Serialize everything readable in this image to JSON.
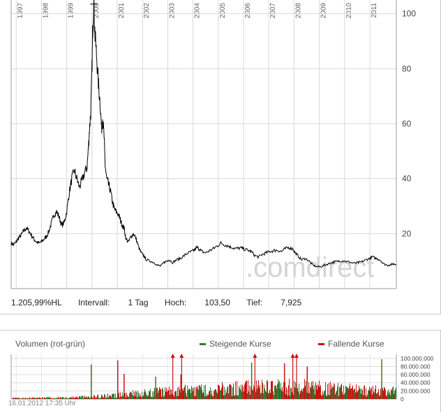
{
  "chart_data": [
    {
      "type": "line",
      "title": "",
      "x_ticks": [
        "1997",
        "1998",
        "1999",
        "2000",
        "2001",
        "2002",
        "2003",
        "2004",
        "2005",
        "2006",
        "2007",
        "2008",
        "2009",
        "2010",
        "2011"
      ],
      "y_ticks": [
        20,
        40,
        60,
        80,
        100
      ],
      "ylim": [
        0,
        105
      ],
      "xlim": [
        1996.8,
        2012.05
      ],
      "grid": true,
      "series": [
        {
          "color": "#000000",
          "points": [
            [
              1996.8,
              16.5
            ],
            [
              1996.9,
              16
            ],
            [
              1997.0,
              17
            ],
            [
              1997.1,
              18.5
            ],
            [
              1997.2,
              19.5
            ],
            [
              1997.3,
              21
            ],
            [
              1997.4,
              22
            ],
            [
              1997.5,
              21
            ],
            [
              1997.6,
              19.5
            ],
            [
              1997.7,
              18
            ],
            [
              1997.8,
              17
            ],
            [
              1997.9,
              16.5
            ],
            [
              1998.0,
              17
            ],
            [
              1998.1,
              18
            ],
            [
              1998.2,
              19
            ],
            [
              1998.3,
              21
            ],
            [
              1998.4,
              24
            ],
            [
              1998.5,
              27
            ],
            [
              1998.6,
              28
            ],
            [
              1998.7,
              26
            ],
            [
              1998.8,
              23
            ],
            [
              1998.9,
              24
            ],
            [
              1999.0,
              28
            ],
            [
              1999.1,
              35
            ],
            [
              1999.2,
              40
            ],
            [
              1999.3,
              43
            ],
            [
              1999.4,
              40
            ],
            [
              1999.5,
              37
            ],
            [
              1999.6,
              39
            ],
            [
              1999.7,
              42
            ],
            [
              1999.8,
              44
            ],
            [
              1999.85,
              50
            ],
            [
              1999.9,
              58
            ],
            [
              1999.95,
              64
            ],
            [
              2000.0,
              80
            ],
            [
              2000.03,
              95
            ],
            [
              2000.07,
              103.5
            ],
            [
              2000.12,
              92
            ],
            [
              2000.18,
              85
            ],
            [
              2000.25,
              75
            ],
            [
              2000.32,
              68
            ],
            [
              2000.38,
              58
            ],
            [
              2000.42,
              62
            ],
            [
              2000.48,
              55
            ],
            [
              2000.52,
              45
            ],
            [
              2000.58,
              40
            ],
            [
              2000.65,
              38
            ],
            [
              2000.72,
              36
            ],
            [
              2000.8,
              32
            ],
            [
              2000.88,
              29
            ],
            [
              2000.95,
              28
            ],
            [
              2001.05,
              27
            ],
            [
              2001.12,
              25
            ],
            [
              2001.2,
              23
            ],
            [
              2001.27,
              22
            ],
            [
              2001.35,
              18
            ],
            [
              2001.45,
              17
            ],
            [
              2001.55,
              19
            ],
            [
              2001.65,
              20
            ],
            [
              2001.75,
              18
            ],
            [
              2001.85,
              15
            ],
            [
              2001.95,
              13
            ],
            [
              2002.05,
              12
            ],
            [
              2002.15,
              10.5
            ],
            [
              2002.3,
              10
            ],
            [
              2002.45,
              9.5
            ],
            [
              2002.6,
              8.5
            ],
            [
              2002.72,
              8.2
            ],
            [
              2002.85,
              9.5
            ],
            [
              2002.95,
              10
            ],
            [
              2003.05,
              10.5
            ],
            [
              2003.2,
              9.5
            ],
            [
              2003.35,
              10.5
            ],
            [
              2003.5,
              11
            ],
            [
              2003.65,
              12
            ],
            [
              2003.8,
              13
            ],
            [
              2003.95,
              13.5
            ],
            [
              2004.05,
              14
            ],
            [
              2004.15,
              15
            ],
            [
              2004.25,
              14.5
            ],
            [
              2004.35,
              13.5
            ],
            [
              2004.5,
              13
            ],
            [
              2004.65,
              13.8
            ],
            [
              2004.8,
              14.5
            ],
            [
              2004.95,
              15.5
            ],
            [
              2005.1,
              16.5
            ],
            [
              2005.25,
              16
            ],
            [
              2005.4,
              15.5
            ],
            [
              2005.55,
              15
            ],
            [
              2005.7,
              14.5
            ],
            [
              2005.85,
              14.8
            ],
            [
              2006.0,
              14.5
            ],
            [
              2006.15,
              14
            ],
            [
              2006.3,
              13.5
            ],
            [
              2006.45,
              12
            ],
            [
              2006.6,
              11.5
            ],
            [
              2006.75,
              12.5
            ],
            [
              2006.9,
              13
            ],
            [
              2007.05,
              13.5
            ],
            [
              2007.2,
              13.8
            ],
            [
              2007.35,
              14
            ],
            [
              2007.5,
              13.5
            ],
            [
              2007.65,
              14.5
            ],
            [
              2007.8,
              15
            ],
            [
              2007.95,
              14.5
            ],
            [
              2008.05,
              13
            ],
            [
              2008.15,
              12
            ],
            [
              2008.3,
              10.5
            ],
            [
              2008.45,
              11
            ],
            [
              2008.6,
              10
            ],
            [
              2008.75,
              8.5
            ],
            [
              2008.9,
              8
            ],
            [
              2009.05,
              7.925
            ],
            [
              2009.2,
              8.5
            ],
            [
              2009.35,
              9
            ],
            [
              2009.5,
              9.5
            ],
            [
              2009.65,
              9.8
            ],
            [
              2009.8,
              10
            ],
            [
              2009.95,
              10.2
            ],
            [
              2010.1,
              9.8
            ],
            [
              2010.25,
              9.5
            ],
            [
              2010.4,
              9.2
            ],
            [
              2010.55,
              9.5
            ],
            [
              2010.7,
              9.8
            ],
            [
              2010.85,
              10.5
            ],
            [
              2011.0,
              11
            ],
            [
              2011.1,
              11.5
            ],
            [
              2011.25,
              11
            ],
            [
              2011.4,
              10.5
            ],
            [
              2011.55,
              9
            ],
            [
              2011.7,
              8.5
            ],
            [
              2011.85,
              8.8
            ],
            [
              2011.95,
              9
            ],
            [
              2012.04,
              8.8
            ]
          ]
        }
      ]
    },
    {
      "type": "bar",
      "title": "Volumen (rot-grün)",
      "y_ticks": [
        0,
        20000000,
        40000000,
        60000000,
        80000000,
        100000000
      ],
      "y_tick_labels": [
        "0",
        "20.000.000",
        "40.000.000",
        "60.000.000",
        "80.000.000",
        "100.000.000"
      ],
      "ylim": [
        0,
        110000000
      ],
      "xlim": [
        1996.8,
        2012.05
      ],
      "grid": true,
      "legend": [
        "Steigende Kurse",
        "Fallende Kurse"
      ],
      "legend_placement": "top-right",
      "series_colors": {
        "up": "#2e7d32",
        "down": "#cc1111"
      },
      "volume_profile": [
        [
          1996.8,
          2000000
        ],
        [
          1998.0,
          3000000
        ],
        [
          1999.0,
          4000000
        ],
        [
          2000.0,
          6000000
        ],
        [
          2001.0,
          10000000
        ],
        [
          2002.0,
          16000000
        ],
        [
          2003.0,
          20000000
        ],
        [
          2004.0,
          22000000
        ],
        [
          2005.0,
          25000000
        ],
        [
          2006.0,
          28000000
        ],
        [
          2007.0,
          30000000
        ],
        [
          2008.0,
          32000000
        ],
        [
          2009.0,
          28000000
        ],
        [
          2010.0,
          24000000
        ],
        [
          2011.0,
          22000000
        ],
        [
          2012.05,
          20000000
        ]
      ],
      "spikes": [
        {
          "x": 1999.95,
          "value": 85000000,
          "dir": "up"
        },
        {
          "x": 2001.0,
          "value": 95000000,
          "dir": "down"
        },
        {
          "x": 2001.25,
          "value": 62000000,
          "dir": "down"
        },
        {
          "x": 2002.5,
          "value": 55000000,
          "dir": "up"
        },
        {
          "x": 2003.5,
          "value": 60000000,
          "dir": "down"
        },
        {
          "x": 2006.3,
          "value": 90000000,
          "dir": "up"
        },
        {
          "x": 2007.6,
          "value": 88000000,
          "dir": "down"
        },
        {
          "x": 2008.5,
          "value": 80000000,
          "dir": "down"
        },
        {
          "x": 2011.45,
          "value": 98000000,
          "dir": "up"
        }
      ],
      "overflow_markers": [
        2003.2,
        2003.55,
        2006.45,
        2007.95,
        2008.1
      ]
    }
  ],
  "stats": {
    "hl": "1.205,99%HL",
    "interval_label": "Intervall:",
    "interval_value": "1 Tag",
    "high_label": "Hoch:",
    "high_value": "103,50",
    "low_label": "Tief:",
    "low_value": "7,925"
  },
  "watermark": ".comdirect",
  "timestamp": "16.01.2012 17:35 Uhr"
}
